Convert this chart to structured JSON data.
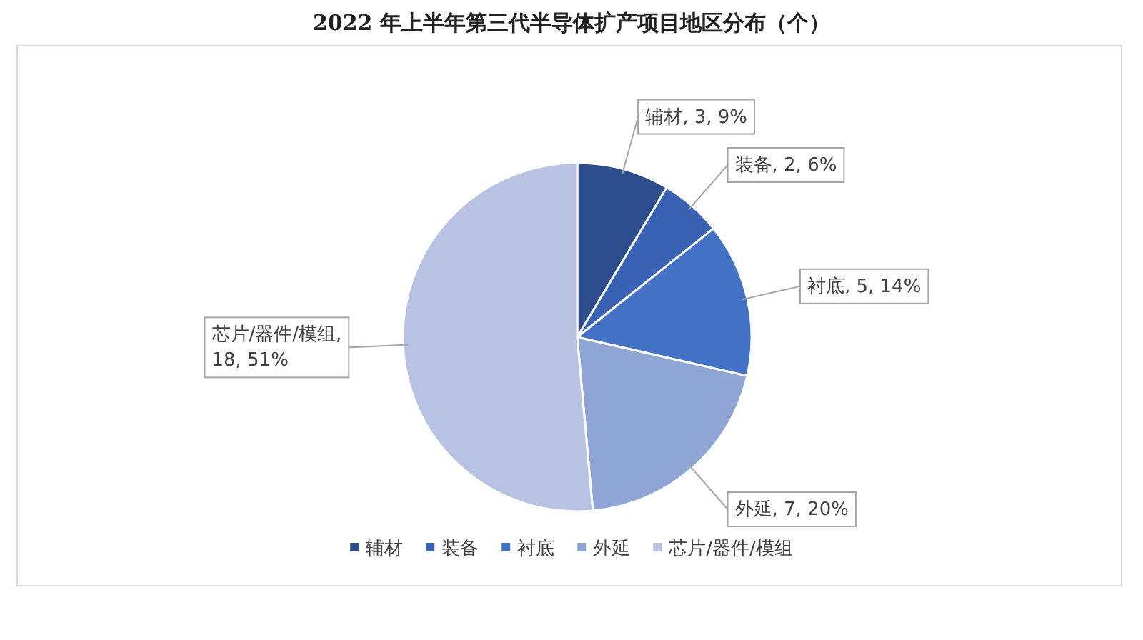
{
  "chart_data": {
    "type": "pie",
    "title": "2022 年上半年第三代半导体扩产项目地区分布（个）",
    "categories": [
      "辅材",
      "装备",
      "衬底",
      "外延",
      "芯片/器件/模组"
    ],
    "values": [
      3,
      2,
      5,
      7,
      18
    ],
    "colors": [
      "#2e4d8c",
      "#3a62b4",
      "#4472c4",
      "#8ea5d6",
      "#b8c3e3"
    ],
    "value_labels": [
      "辅材, 3, 9%",
      "装备, 2, 6%",
      "衬底, 5, 14%",
      "外延, 7, 20%",
      "芯片/器件/模组, 18, 51%"
    ],
    "legend": "bottom"
  }
}
